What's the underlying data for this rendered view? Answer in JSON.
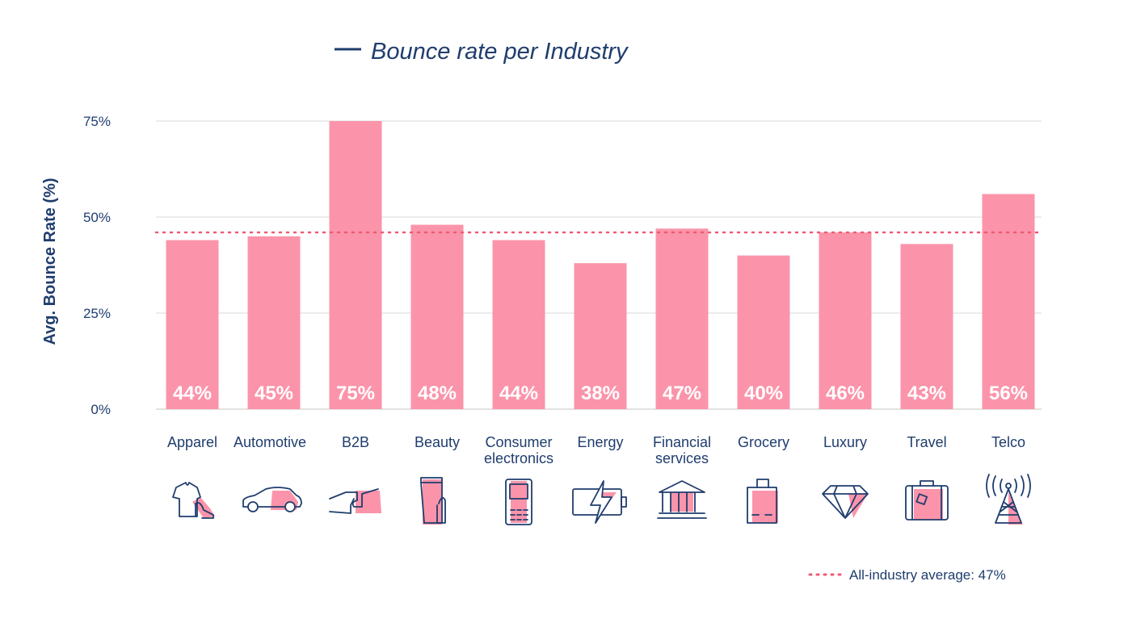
{
  "chart_data": {
    "type": "bar",
    "title": "Bounce rate per Industry",
    "xlabel": "",
    "ylabel": "Avg. Bounce Rate (%)",
    "ylim": [
      0,
      75
    ],
    "yticks": [
      0,
      25,
      50,
      75
    ],
    "ytick_labels": [
      "0%",
      "25%",
      "50%",
      "75%"
    ],
    "grid": true,
    "categories": [
      "Apparel",
      "Automotive",
      "B2B",
      "Beauty",
      "Consumer electronics",
      "Energy",
      "Financial services",
      "Grocery",
      "Luxury",
      "Travel",
      "Telco"
    ],
    "category_lines": [
      [
        "Apparel"
      ],
      [
        "Automotive"
      ],
      [
        "B2B"
      ],
      [
        "Beauty"
      ],
      [
        "Consumer",
        "electronics"
      ],
      [
        "Energy"
      ],
      [
        "Financial",
        "services"
      ],
      [
        "Grocery"
      ],
      [
        "Luxury"
      ],
      [
        "Travel"
      ],
      [
        "Telco"
      ]
    ],
    "values": [
      44,
      45,
      75,
      48,
      44,
      38,
      47,
      40,
      46,
      43,
      56
    ],
    "data_labels": [
      "44%",
      "45%",
      "75%",
      "48%",
      "44%",
      "38%",
      "47%",
      "40%",
      "46%",
      "43%",
      "56%"
    ],
    "icons": [
      "apparel-icon",
      "car-icon",
      "handshake-puzzle-icon",
      "lipstick-icon",
      "mobile-phone-icon",
      "battery-icon",
      "bank-icon",
      "shopping-bag-icon",
      "diamond-icon",
      "suitcase-icon",
      "antenna-tower-icon"
    ],
    "reference_line": {
      "value": 47,
      "label": "All-industry average: 47%",
      "style": "dotted"
    },
    "legend_placement": "top-center",
    "colors": {
      "bar": "#fb94aa",
      "navy": "#1f3d6e",
      "avg": "#ef5a74",
      "grid": "#d9d9d9"
    }
  }
}
